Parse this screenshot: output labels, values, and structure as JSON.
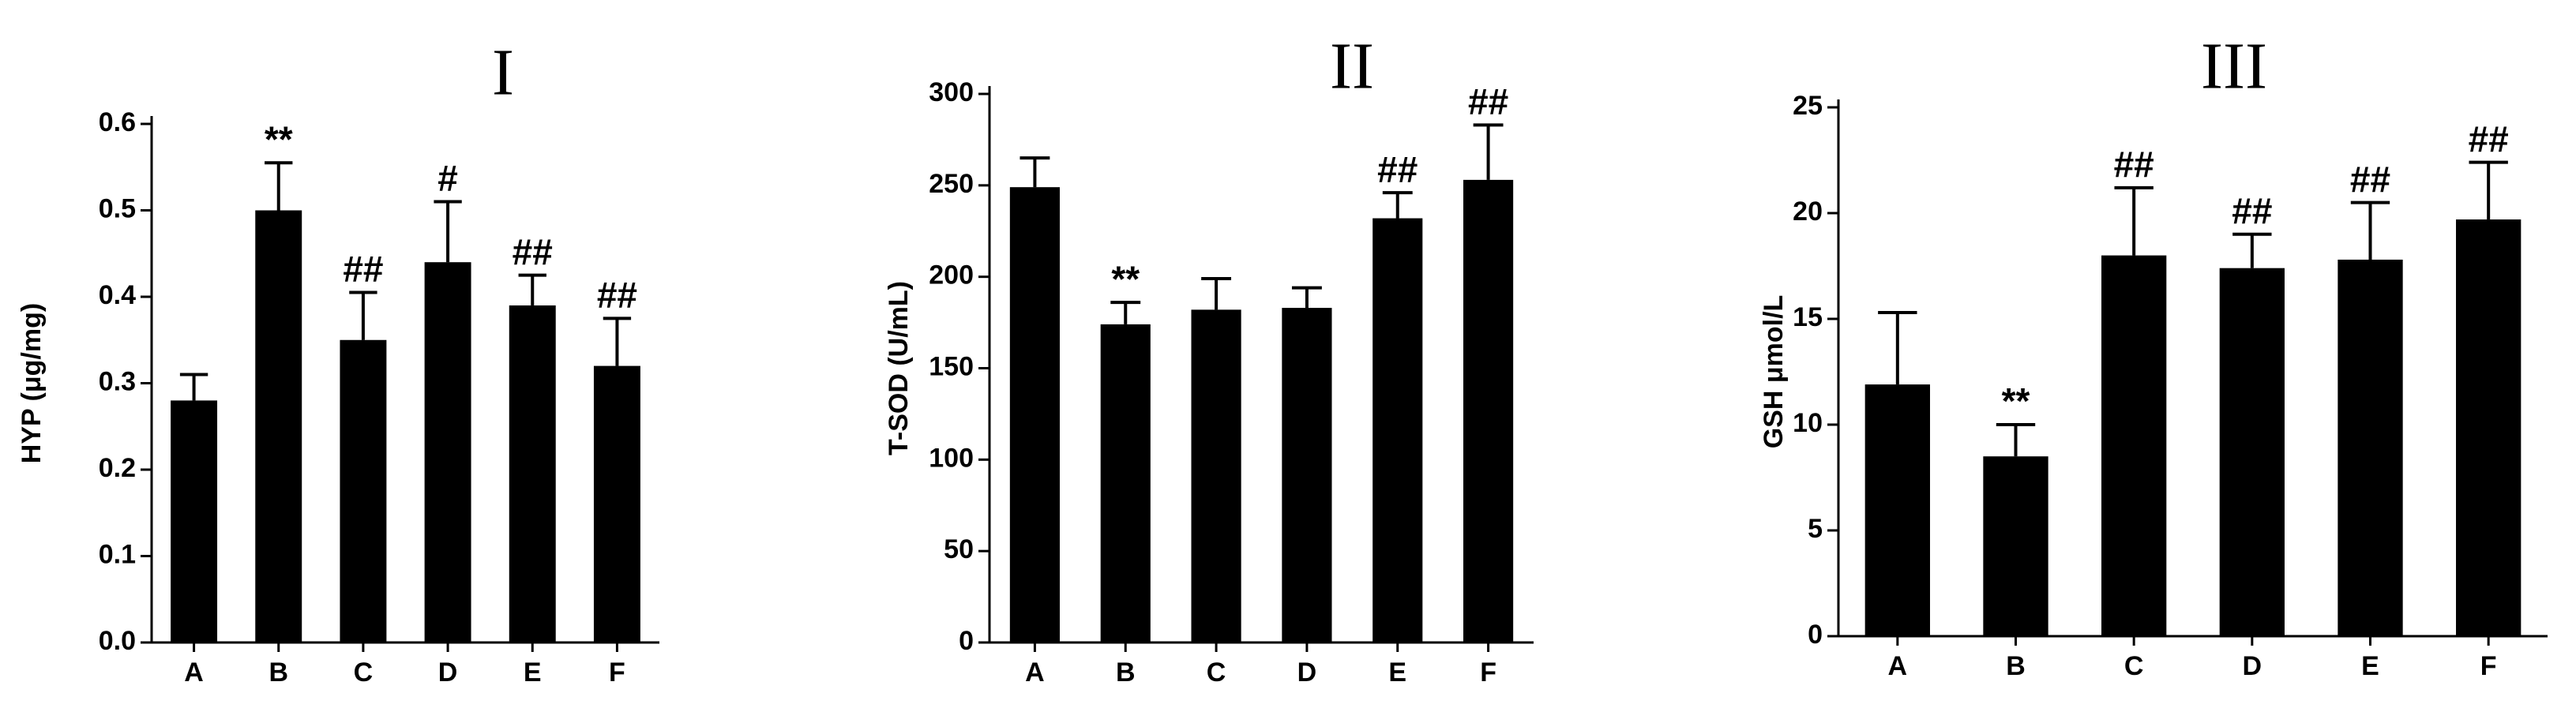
{
  "chart_data": [
    {
      "type": "bar",
      "title": "I",
      "y_label": "HYP (μg/mg)",
      "categories": [
        "A",
        "B",
        "C",
        "D",
        "E",
        "F"
      ],
      "values": [
        0.28,
        0.5,
        0.35,
        0.44,
        0.39,
        0.32
      ],
      "errors": [
        0.03,
        0.055,
        0.055,
        0.07,
        0.035,
        0.055
      ],
      "annotations": [
        null,
        "**",
        "##",
        "#",
        "##",
        "##"
      ],
      "color": "#000000",
      "ylim": [
        0,
        0.6
      ],
      "yticks": [
        {
          "value": 0,
          "label": "0.0"
        },
        0.1,
        0.2,
        0.3,
        0.4,
        0.5,
        0.6
      ]
    },
    {
      "type": "bar",
      "title": "II",
      "y_label": "T-SOD (U/mL)",
      "categories": [
        "A",
        "B",
        "C",
        "D",
        "E",
        "F"
      ],
      "values": [
        249,
        174,
        182,
        183,
        232,
        253
      ],
      "errors": [
        16,
        12,
        17,
        11,
        14,
        30
      ],
      "annotations": [
        null,
        "**",
        null,
        null,
        "##",
        "##"
      ],
      "color": "#000000",
      "ylim": [
        0,
        300
      ],
      "yticks": [
        0,
        50,
        100,
        150,
        200,
        250,
        300
      ]
    },
    {
      "type": "bar",
      "title": "III",
      "y_label": "GSH μmol/L",
      "categories": [
        "A",
        "B",
        "C",
        "D",
        "E",
        "F"
      ],
      "values": [
        11.9,
        8.5,
        18.0,
        17.4,
        17.8,
        19.7
      ],
      "errors": [
        3.4,
        1.5,
        3.2,
        1.6,
        2.7,
        2.7
      ],
      "annotations": [
        null,
        "**",
        "##",
        "##",
        "##",
        "##"
      ],
      "color": "#000000",
      "ylim": [
        0,
        25
      ],
      "yticks": [
        0,
        5,
        10,
        15,
        20,
        25
      ]
    }
  ]
}
